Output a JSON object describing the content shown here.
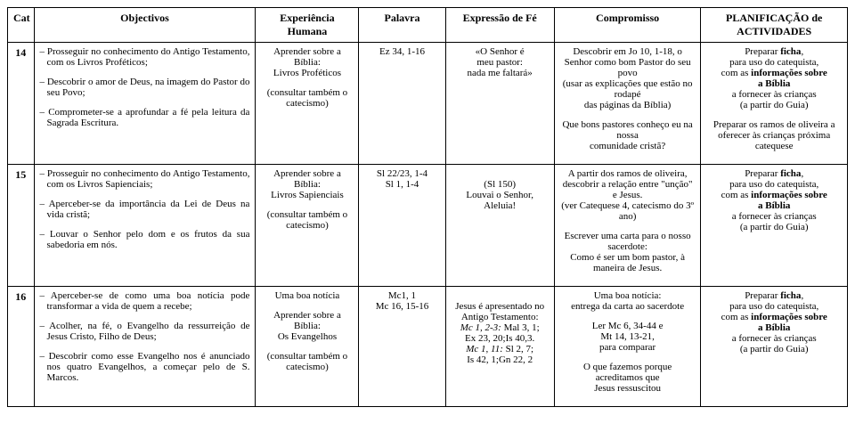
{
  "headers": {
    "cat": "Cat",
    "obj": "Objectivos",
    "exp": "Experiência Humana",
    "pal": "Palavra",
    "fe": "Expressão de Fé",
    "com": "Compromisso",
    "plan": "PLANIFICAÇÃO de ACTIVIDADES"
  },
  "rows": [
    {
      "cat": "14",
      "obj": [
        "– Prosseguir no conhecimento do Antigo Testamento, com os Livros Proféticos;",
        "– Descobrir o amor de Deus, na imagem do Pastor do seu Povo;",
        "– Comprometer-se a aprofundar a fé pela leitura da Sagrada Escritura."
      ],
      "exp_html": "<p>Aprender sobre a Bíblia:<br>Livros Proféticos</p><p>(consultar também o catecismo)</p>",
      "pal_html": "<p>Ez 34, 1-16</p>",
      "fe_html": "<p>«O Senhor é<br>meu pastor:<br>nada me faltará»</p>",
      "com_html": "<p>Descobrir em Jo 10, 1-18, o Senhor como bom Pastor do seu povo<br>(usar as explicações que estão no rodapé<br>das páginas da Bíblia)</p><p>Que bons pastores conheço eu na nossa<br>comunidade cristã?</p>",
      "plan_html": "<p>Preparar <b>ficha</b>,<br>para uso do catequista,<br>com as <b>informações sobre<br>a Bíblia</b><br>a fornecer às crianças<br>(a partir do Guia)</p><p>Preparar os ramos de oliveira a oferecer às crianças próxima catequese</p>"
    },
    {
      "cat": "15",
      "obj": [
        "– Prosseguir no conhecimento do Antigo Testamento, com os Livros Sapienciais;",
        "– Aperceber-se da importância da Lei de Deus na vida cristã;",
        "– Louvar o Senhor pelo dom e os frutos da sua sabedoria em nós."
      ],
      "exp_html": "<p>Aprender sobre a Bíblia:<br>Livros Sapienciais</p><p>(consultar também o catecismo)</p>",
      "pal_html": "<p>Sl 22/23, 1-4<br>Sl 1, 1-4</p>",
      "fe_html": "<p><br>(Sl 150)<br>Louvai o Senhor,<br>Aleluia!</p>",
      "com_html": "<p>A partir dos ramos de oliveira, descobrir a relação entre \"unção\" e Jesus.<br>(ver Catequese 4, catecismo do 3º ano)</p><p>Escrever uma carta para o nosso sacerdote:<br>Como é ser um bom pastor, à maneira de Jesus.</p>",
      "plan_html": "<p>Preparar <b>ficha</b>,<br>para uso do catequista,<br>com as <b>informações sobre<br>a Bíblia</b><br>a fornecer às crianças<br>(a partir do Guia)</p>"
    },
    {
      "cat": "16",
      "obj": [
        "– Aperceber-se de como uma boa notícia pode transformar a vida de quem a recebe;",
        "– Acolher, na fé, o Evangelho da ressurreição de Jesus Cristo, Filho de Deus;",
        "– Descobrir como esse Evangelho nos é anunciado nos quatro Evangelhos, a começar pelo de S. Marcos."
      ],
      "exp_html": "<p>Uma boa notícia</p><p>Aprender sobre a Bíblia:<br>Os Evangelhos</p><p>(consultar também o catecismo)</p>",
      "pal_html": "<p>Mc1, 1<br>Mc 16, 15-16</p>",
      "fe_html": "<p><br>Jesus é apresentado no Antigo Testamento:<br><i>Mc 1, 2-3:</i> Mal 3, 1;<br>Ex 23, 20;Is 40,3.<br><i>Mc 1, 11:</i> Sl 2, 7;<br>Is 42, 1;Gn 22, 2</p>",
      "com_html": "<p>Uma boa notícia:<br>entrega da carta ao sacerdote</p><p>Ler Mc 6, 34-44 e<br>Mt 14, 13-21,<br>para comparar</p><p>O que fazemos porque acreditamos que<br>Jesus ressuscitou</p>",
      "plan_html": "<p>Preparar <b>ficha</b>,<br>para uso do catequista,<br>com as <b>informações sobre<br>a Bíblia</b><br>a fornecer às crianças<br>(a partir do Guia)</p>"
    }
  ]
}
